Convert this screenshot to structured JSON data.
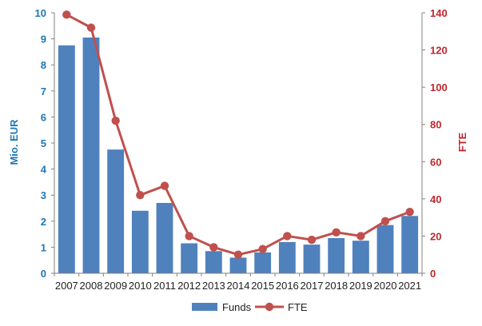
{
  "chart_data": {
    "type": "bar",
    "categories": [
      "2007",
      "2008",
      "2009",
      "2010",
      "2011",
      "2012",
      "2013",
      "2014",
      "2015",
      "2016",
      "2017",
      "2018",
      "2019",
      "2020",
      "2021"
    ],
    "series": [
      {
        "name": "Funds",
        "type": "bar",
        "axis": "left",
        "color": "#4f81bd",
        "values": [
          8.75,
          9.05,
          4.75,
          2.4,
          2.7,
          1.15,
          0.85,
          0.6,
          0.8,
          1.2,
          1.1,
          1.35,
          1.25,
          1.85,
          2.2
        ]
      },
      {
        "name": "FTE",
        "type": "line",
        "axis": "right",
        "color": "#c0504d",
        "values": [
          139,
          132,
          82,
          42,
          47,
          20,
          14,
          10,
          13,
          20,
          18,
          22,
          20,
          28,
          33
        ]
      }
    ],
    "ylabel_left": "Mio. EUR",
    "ylabel_right": "FTE",
    "ylim_left": [
      0,
      10
    ],
    "ylim_right": [
      0,
      140
    ],
    "yticks_left": [
      0,
      1,
      2,
      3,
      4,
      5,
      6,
      7,
      8,
      9,
      10
    ],
    "yticks_right": [
      0,
      20,
      40,
      60,
      80,
      100,
      120,
      140
    ],
    "left_axis_color": "#1f77b4",
    "right_axis_color": "#c0262c",
    "grid": false,
    "legend": "bottom"
  }
}
